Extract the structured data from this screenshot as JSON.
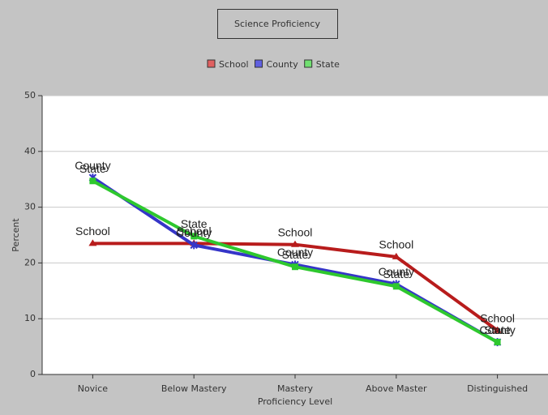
{
  "chart_data": {
    "type": "line",
    "title": "Science Proficiency",
    "x_label": "Proficiency Level",
    "y_label": "Percent",
    "categories": [
      "Novice",
      "Below Mastery",
      "Mastery",
      "Above Master",
      "Distinguished"
    ],
    "series": [
      {
        "name": "School",
        "color": "#b81c1c",
        "legend_color": "#e06060",
        "values": [
          23.5,
          23.5,
          23.3,
          21.1,
          7.9
        ]
      },
      {
        "name": "County",
        "color": "#3535c8",
        "legend_color": "#6060e0",
        "values": [
          35.3,
          23.2,
          19.7,
          16.2,
          5.8
        ]
      },
      {
        "name": "State",
        "color": "#2ec82e",
        "legend_color": "#70e070",
        "values": [
          34.7,
          24.8,
          19.3,
          15.8,
          5.8
        ]
      }
    ],
    "ylim": [
      0,
      50
    ],
    "yticks": [
      0,
      10,
      20,
      30,
      40,
      50
    ],
    "grid": true
  }
}
